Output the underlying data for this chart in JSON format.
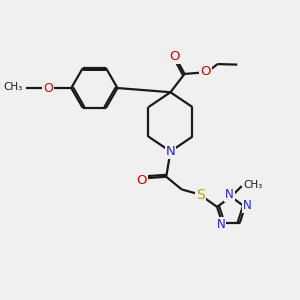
{
  "bg_color": "#f0f0f0",
  "bond_color": "#1a1a1a",
  "n_color": "#2222cc",
  "o_color": "#cc0000",
  "s_color": "#aaaa00",
  "line_width": 1.6,
  "figsize": [
    3.0,
    3.0
  ],
  "dpi": 100,
  "xlim": [
    0,
    10
  ],
  "ylim": [
    0,
    10
  ]
}
